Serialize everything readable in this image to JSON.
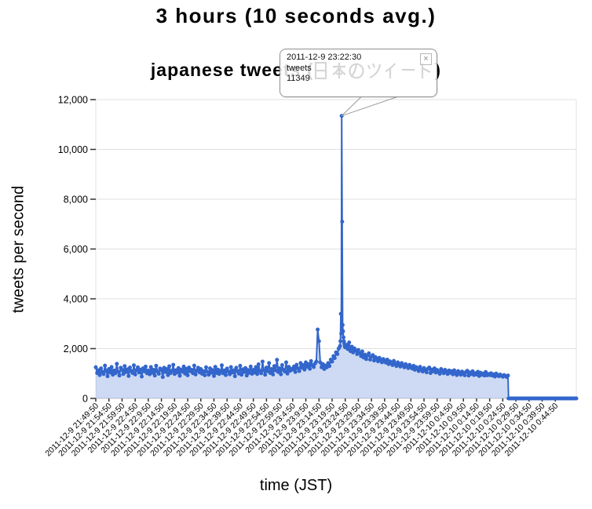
{
  "title": "3 hours (10 seconds avg.)",
  "subtitle": {
    "full": "japanese tweets (日本のツイート)",
    "en": "japanese tweets (",
    "jp": "日本のツイート",
    "close_paren": ")"
  },
  "y_axis": {
    "title": "tweets per second"
  },
  "x_axis": {
    "title": "time (JST)"
  },
  "tooltip": {
    "timestamp": "2011-12-9 23:22:30",
    "series": "tweets",
    "value": "11349",
    "close_icon": "×"
  },
  "colors": {
    "line": "#3366cc",
    "point": "#3366cc",
    "area": "rgba(51,102,204,0.24)",
    "grid": "#e0e0e0",
    "zero_line": "#cccccc",
    "tick": "#333333",
    "axis_text": "#000000",
    "tooltip_border": "#909090",
    "callout": "#999999"
  },
  "chart_data": {
    "type": "area",
    "title": "japanese tweets (日本のツイート)",
    "series_name": "tweets",
    "xlabel": "time (JST)",
    "ylabel": "tweets per second",
    "legend": "none",
    "grid": true,
    "ylim": [
      0,
      12000
    ],
    "yticks": [
      0,
      2000,
      4000,
      6000,
      8000,
      10000,
      12000
    ],
    "ytick_labels": [
      "0",
      "2,000",
      "4,000",
      "6,000",
      "8,000",
      "10,000",
      "12,000"
    ],
    "x_start": "2011-12-9 21:49:50",
    "x_minutes_max": 183,
    "xtick_interval_minutes": 5,
    "x_tick_labels": [
      "2011-12-9 21:49:50",
      "2011-12-9 21:54:50",
      "2011-12-9 21:59:50",
      "2011-12-9 22:4:50",
      "2011-12-9 22:9:50",
      "2011-12-9 22:14:50",
      "2011-12-9 22:19:50",
      "2011-12-9 22:24:50",
      "2011-12-9 22:29:50",
      "2011-12-9 22:34:50",
      "2011-12-9 22:39:50",
      "2011-12-9 22:44:50",
      "2011-12-9 22:49:50",
      "2011-12-9 22:54:50",
      "2011-12-9 22:59:50",
      "2011-12-9 23:4:50",
      "2011-12-9 23:9:50",
      "2011-12-9 23:14:50",
      "2011-12-9 23:19:50",
      "2011-12-9 23:24:50",
      "2011-12-9 23:29:50",
      "2011-12-9 23:34:50",
      "2011-12-9 23:39:50",
      "2011-12-9 23:44:50",
      "2011-12-9 23:49:50",
      "2011-12-9 23:54:50",
      "2011-12-9 23:59:50",
      "2011-12-10 0:4:50",
      "2011-12-10 0:9:50",
      "2011-12-10 0:14:50",
      "2011-12-10 0:19:50",
      "2011-12-10 0:24:50",
      "2011-12-10 0:29:50",
      "2011-12-10 0:34:50",
      "2011-12-10 0:39:50",
      "2011-12-10 0:44:50"
    ],
    "peak": {
      "time": "2011-12-9 23:22:30",
      "value": 11349
    },
    "secondary_peak_value": 7100,
    "segments": [
      {
        "t0": 0,
        "dt": 0.5,
        "values": [
          1250,
          1020,
          1130,
          940,
          1210,
          1060,
          980,
          1320,
          1100,
          890,
          1180,
          1040,
          1260,
          950,
          1120,
          1010,
          1390,
          1080,
          920,
          1230,
          1150,
          980,
          1300,
          1060,
          1170,
          900,
          1240,
          1100,
          1020,
          1330,
          960,
          1140,
          1250,
          1040,
          1160,
          880,
          1210,
          1090,
          1280,
          1010,
          1120,
          970,
          1260,
          1030,
          1150,
          920,
          1310,
          1080,
          990,
          1200,
          1140,
          860,
          1230,
          1060,
          1180,
          940,
          1290,
          1020,
          1110,
          1350,
          980,
          1130,
          1040,
          1220,
          910,
          1160,
          1070,
          1280,
          1000,
          1190,
          930,
          1240,
          1090,
          1150,
          1010,
          1320,
          960,
          1120,
          1230,
          1050,
          1180,
          990,
          1100,
          930,
          1250,
          1070,
          950,
          1210,
          1030,
          1140,
          900,
          1270,
          1020,
          1160,
          980,
          1090,
          1330,
          1010,
          1120,
          940,
          1200,
          1080,
          970,
          1260,
          1040,
          1130,
          890,
          1230,
          1100,
          1000,
          1310,
          950,
          1170,
          1060,
          1220,
          920,
          1140,
          1030,
          1280,
          990,
          1150,
          1040,
          1260,
          980,
          1370,
          1100,
          1010,
          1480,
          1130,
          950,
          1240,
          1090,
          1420,
          1020,
          1180,
          960,
          1300,
          1120,
          1550,
          1060,
          1210,
          970,
          1340,
          1150,
          1080,
          1450,
          1000,
          1270,
          1110,
          1190,
          1160,
          1280,
          1060,
          1350,
          1210,
          1100,
          1420,
          1230,
          1340,
          1160,
          1450,
          1270,
          1380,
          1190,
          1500,
          1330,
          1260,
          1400,
          1480,
          2770,
          2300,
          1450,
          1250,
          1380,
          1180,
          1320,
          1250,
          1420,
          1300,
          1560,
          1480,
          1700,
          1620,
          1850,
          1780,
          2000
        ]
      },
      {
        "t0": 93,
        "dt": 0.16667,
        "values": [
          2100,
          2300,
          3400,
          2600,
          11349,
          7100,
          2950,
          2700,
          2450,
          2300,
          2200,
          2100,
          2050
        ]
      },
      {
        "t0": 95.5,
        "dt": 0.5,
        "values": [
          2150,
          1980,
          2250,
          1900,
          2080,
          1850,
          2010,
          1920,
          1780,
          1950,
          1820,
          1700,
          1890,
          1640,
          1760,
          1580,
          1720,
          1810,
          1560,
          1680,
          1740,
          1520,
          1660,
          1600,
          1490,
          1630,
          1550,
          1450,
          1580,
          1500,
          1440,
          1560,
          1380,
          1490,
          1420,
          1340,
          1510,
          1390,
          1300,
          1450,
          1360,
          1280,
          1420,
          1330,
          1250,
          1380,
          1290,
          1220,
          1350,
          1260,
          1200,
          1310,
          1150,
          1260,
          1180,
          1100,
          1270,
          1160,
          1080,
          1220,
          1130,
          1050,
          1190,
          1240,
          1020,
          1160,
          1090,
          1210,
          1040,
          1140,
          1070,
          990,
          1180,
          1100,
          1010,
          1150,
          1060,
          980,
          1120,
          1030,
          1090,
          970,
          1130,
          1010,
          940,
          1100,
          1020,
          950,
          1080,
          1000,
          930,
          1060,
          1110,
          920,
          1040,
          980,
          1090,
          940,
          1010,
          960,
          1070,
          900,
          1030,
          950,
          1000,
          920,
          1060,
          930,
          980,
          940,
          1010,
          920,
          970,
          880,
          1000,
          930,
          890,
          960,
          910,
          870,
          940,
          900,
          860,
          920
        ]
      },
      {
        "t0": 157.2,
        "dt": 0.5,
        "values": [
          0,
          0,
          0,
          0,
          0,
          0,
          0,
          0,
          0,
          0,
          0,
          0,
          0,
          0,
          0,
          0,
          0,
          0,
          0,
          0,
          0,
          0,
          0,
          0,
          0,
          0,
          0,
          0,
          0,
          0,
          0,
          0,
          0,
          0,
          0,
          0,
          0,
          0,
          0,
          0,
          0,
          0,
          0,
          0,
          0,
          0,
          0,
          0,
          0,
          0,
          0,
          0,
          0
        ]
      }
    ]
  }
}
